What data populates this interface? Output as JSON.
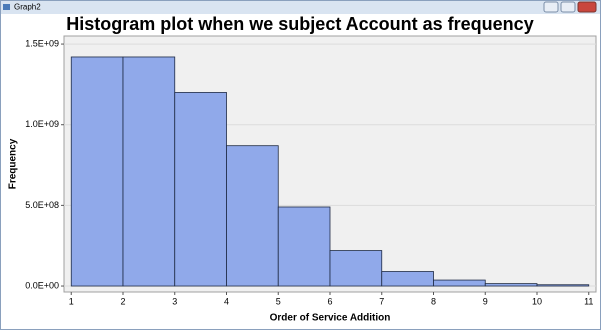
{
  "window": {
    "title": "Graph2"
  },
  "chart_data": {
    "type": "histogram",
    "title": "Histogram plot when we subject Account as frequency",
    "x_label": "Order of Service Addition",
    "y_label": "Frequency",
    "bins": [
      1,
      2,
      3,
      4,
      5,
      6,
      7,
      8,
      9,
      10,
      11
    ],
    "values": [
      1420000000,
      1420000000,
      1200000000,
      870000000,
      490000000,
      220000000,
      90000000,
      37000000,
      15000000,
      8000000
    ],
    "color": "#90a9ea",
    "xlim": [
      0.86,
      11.14
    ],
    "xticks": [
      1,
      2,
      3,
      4,
      5,
      6,
      7,
      8,
      9,
      10,
      11
    ],
    "ylim": [
      -37000000,
      1550000000
    ],
    "yticks": [
      {
        "value": 0,
        "label": "0.0E+00"
      },
      {
        "value": 500000000,
        "label": "5.0E+08"
      },
      {
        "value": 1000000000,
        "label": "1.0E+09"
      },
      {
        "value": 1500000000,
        "label": "1.5E+09"
      }
    ],
    "grid": true
  }
}
